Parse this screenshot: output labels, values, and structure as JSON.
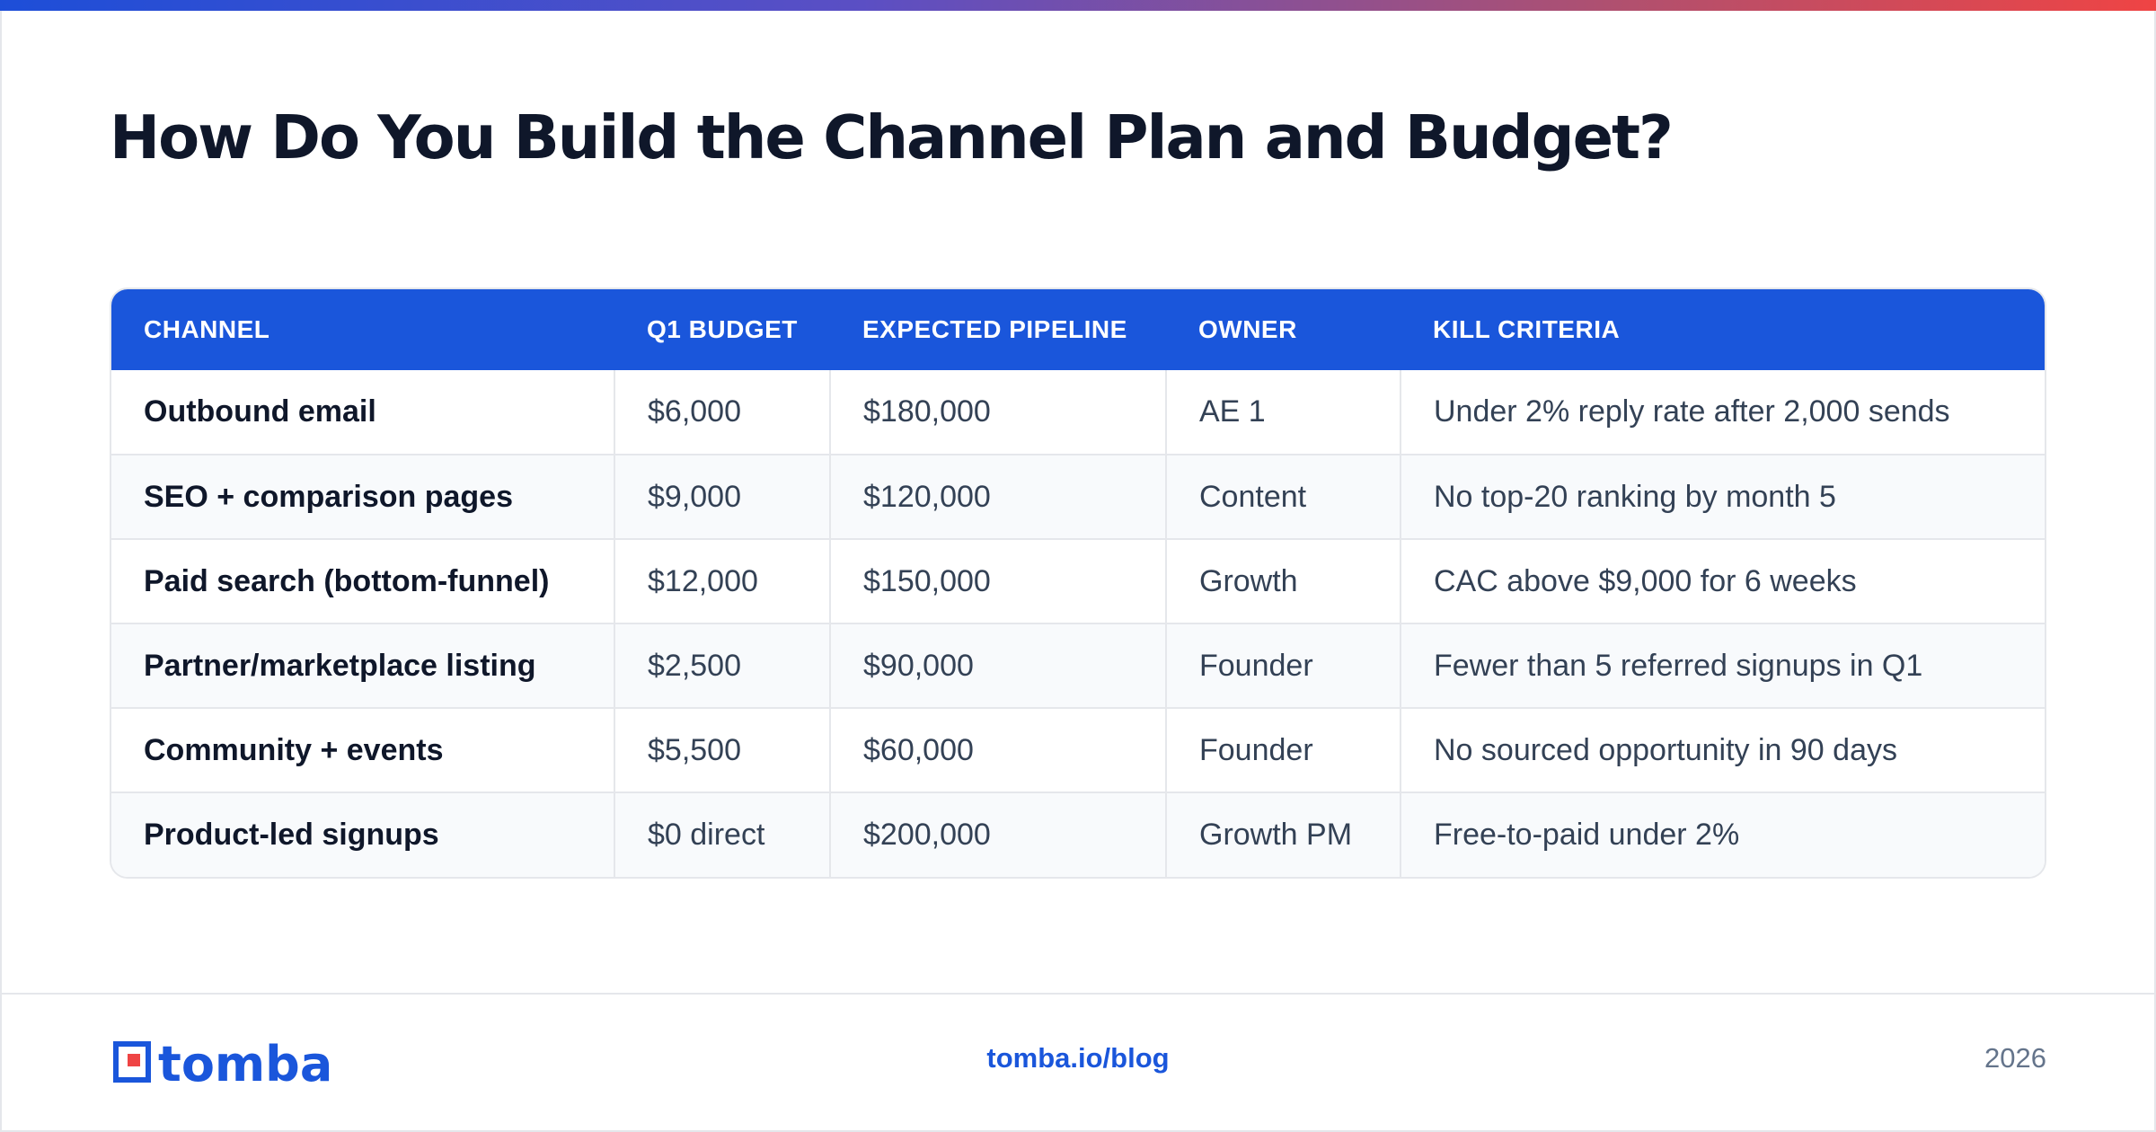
{
  "header": {
    "title": "How Do You Build the Channel Plan and Budget?"
  },
  "colors": {
    "accent": "#1a56db",
    "gradient_start": "#1d4ed8",
    "gradient_end": "#ef4444",
    "logo_red": "#ef4444"
  },
  "table": {
    "columns": [
      "CHANNEL",
      "Q1 BUDGET",
      "EXPECTED PIPELINE",
      "OWNER",
      "KILL CRITERIA"
    ],
    "rows": [
      [
        "Outbound email",
        "$6,000",
        "$180,000",
        "AE 1",
        "Under 2% reply rate after 2,000 sends"
      ],
      [
        "SEO + comparison pages",
        "$9,000",
        "$120,000",
        "Content",
        "No top-20 ranking by month 5"
      ],
      [
        "Paid search (bottom-funnel)",
        "$12,000",
        "$150,000",
        "Growth",
        "CAC above $9,000 for 6 weeks"
      ],
      [
        "Partner/marketplace listing",
        "$2,500",
        "$90,000",
        "Founder",
        "Fewer than 5 referred signups in Q1"
      ],
      [
        "Community + events",
        "$5,500",
        "$60,000",
        "Founder",
        "No sourced opportunity in 90 days"
      ],
      [
        "Product-led signups",
        "$0 direct",
        "$200,000",
        "Growth PM",
        "Free-to-paid under 2%"
      ]
    ]
  },
  "footer": {
    "logo_text": "tomba",
    "logo_icon": "tomba-logo-icon",
    "link": "tomba.io/blog",
    "year": "2026"
  }
}
